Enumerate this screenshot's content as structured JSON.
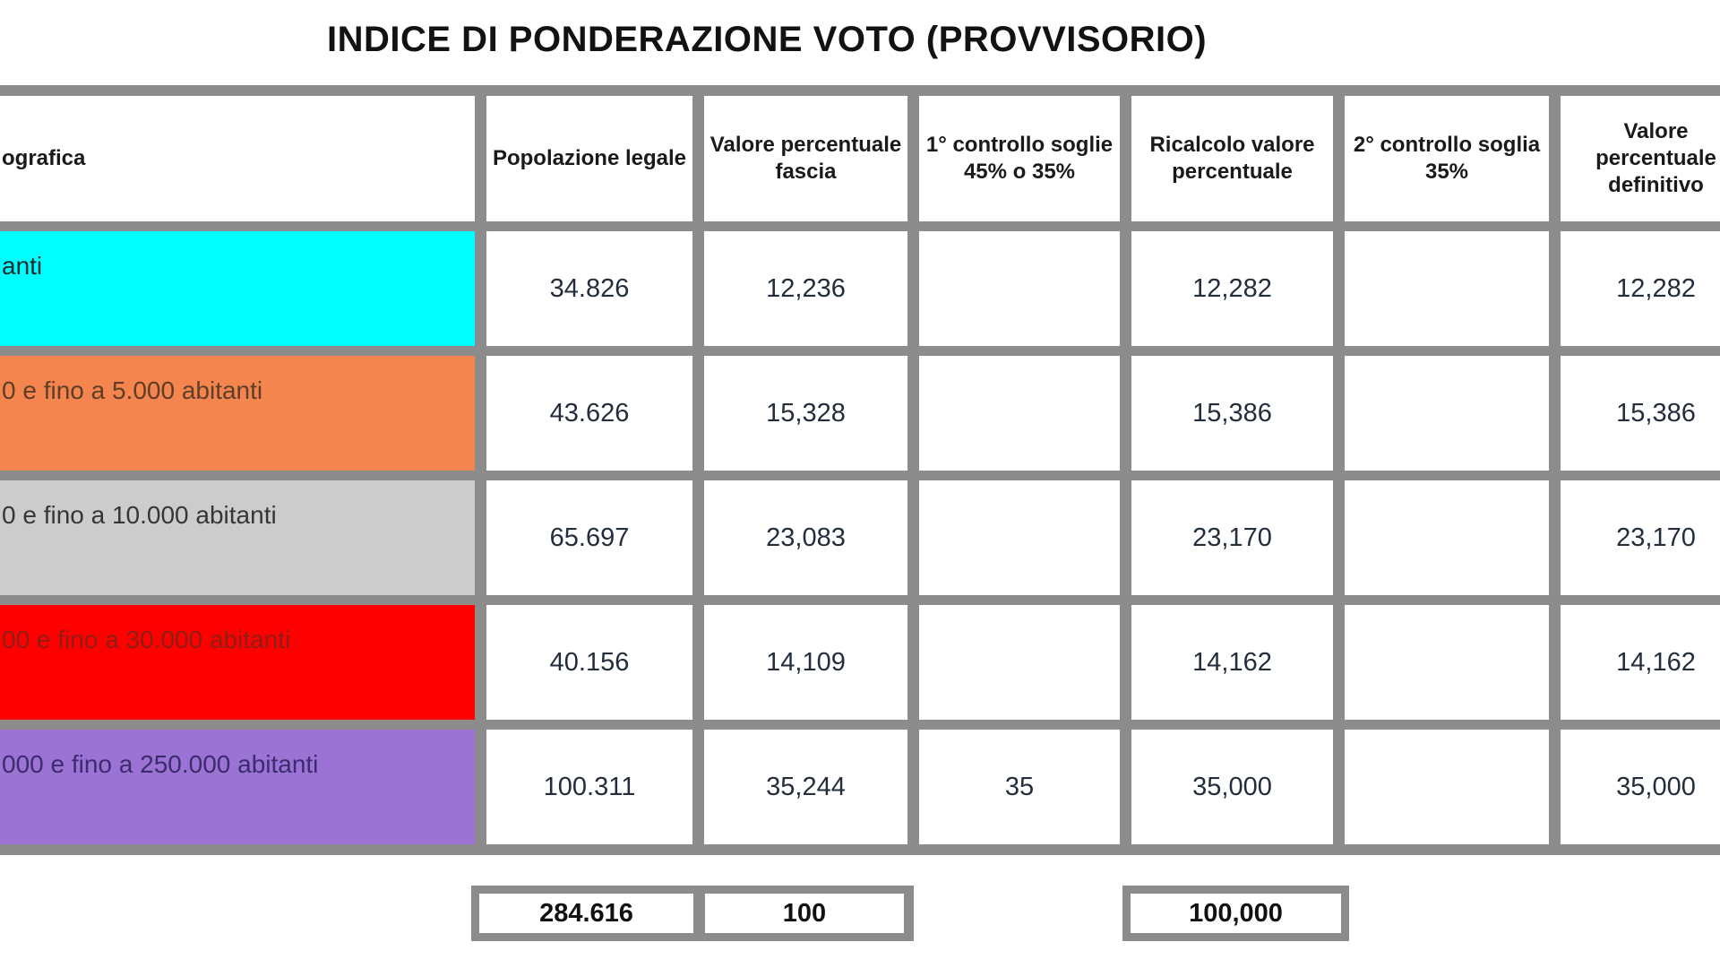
{
  "title": "INDICE DI PONDERAZIONE VOTO (PROVVISORIO)",
  "colors": {
    "grid_border": "#8c8c8c",
    "header_text": "#1a1a1a",
    "number_text": "#242d3c"
  },
  "table": {
    "headers": [
      "ografica",
      "Popolazione legale",
      "Valore percentuale fascia",
      "1° controllo soglie 45% o 35%",
      "Ricalcolo valore percentuale",
      "2° controllo soglia 35%",
      "Valore percentuale definitivo"
    ],
    "rows": [
      {
        "label": "anti",
        "color": "#00feff",
        "label_color": "#142a2e",
        "popolazione": "34.826",
        "valore_pct": "12,236",
        "controllo1": "",
        "ricalcolo": "12,282",
        "controllo2": "",
        "valore_def": "12,282"
      },
      {
        "label": "0 e fino a 5.000 abitanti",
        "color": "#f5854f",
        "label_color": "#5f3d26",
        "popolazione": "43.626",
        "valore_pct": "15,328",
        "controllo1": "",
        "ricalcolo": "15,386",
        "controllo2": "",
        "valore_def": "15,386"
      },
      {
        "label": "0 e fino a 10.000 abitanti",
        "color": "#cccccc",
        "label_color": "#363636",
        "popolazione": "65.697",
        "valore_pct": "23,083",
        "controllo1": "",
        "ricalcolo": "23,170",
        "controllo2": "",
        "valore_def": "23,170"
      },
      {
        "label": "00 e fino a 30.000 abitanti",
        "color": "#fe0000",
        "label_color": "#8e1e15",
        "popolazione": "40.156",
        "valore_pct": "14,109",
        "controllo1": "",
        "ricalcolo": "14,162",
        "controllo2": "",
        "valore_def": "14,162"
      },
      {
        "label": "000 e fino a 250.000 abitanti",
        "color": "#9b73d5",
        "label_color": "#3c2b6e",
        "popolazione": "100.311",
        "valore_pct": "35,244",
        "controllo1": "35",
        "ricalcolo": "35,000",
        "controllo2": "",
        "valore_def": "35,000"
      }
    ],
    "totals": {
      "popolazione_totale": "284.616",
      "valore_pct_totale": "100",
      "ricalcolo_totale": "100,000"
    }
  }
}
